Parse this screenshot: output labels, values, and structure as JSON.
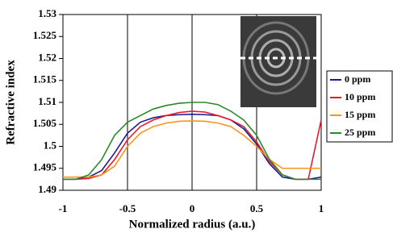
{
  "chart_data": {
    "type": "line",
    "x_label": "Normalized radius (a.u.)",
    "y_label": "Refractive index",
    "x": [
      -1,
      -0.9,
      -0.8,
      -0.7,
      -0.6,
      -0.5,
      -0.4,
      -0.3,
      -0.2,
      -0.1,
      0,
      0.1,
      0.2,
      0.3,
      0.4,
      0.5,
      0.6,
      0.7,
      0.8,
      0.9,
      1
    ],
    "series": [
      {
        "name": "0 ppm",
        "color": "#1c1c8c",
        "values": [
          1.4925,
          1.4925,
          1.493,
          1.4945,
          1.4985,
          1.503,
          1.5055,
          1.5065,
          1.507,
          1.5072,
          1.5073,
          1.5072,
          1.507,
          1.506,
          1.504,
          1.5005,
          1.496,
          1.493,
          1.4925,
          1.4925,
          1.493
        ]
      },
      {
        "name": "10 ppm",
        "color": "#e8192c",
        "values": [
          1.4925,
          1.4925,
          1.4927,
          1.4935,
          1.497,
          1.5015,
          1.5045,
          1.506,
          1.507,
          1.5077,
          1.508,
          1.5078,
          1.507,
          1.506,
          1.5045,
          1.501,
          1.4965,
          1.4935,
          1.4925,
          1.4925,
          1.506
        ]
      },
      {
        "name": "15 ppm",
        "color": "#f7941d",
        "values": [
          1.493,
          1.493,
          1.493,
          1.4935,
          1.4955,
          1.5,
          1.503,
          1.5045,
          1.5053,
          1.5057,
          1.5058,
          1.5057,
          1.5053,
          1.5045,
          1.5025,
          1.5,
          1.497,
          1.495,
          1.495,
          1.495,
          1.495
        ]
      },
      {
        "name": "25 ppm",
        "color": "#2a8a2a",
        "values": [
          1.4925,
          1.4925,
          1.4935,
          1.497,
          1.5025,
          1.5055,
          1.507,
          1.5085,
          1.5093,
          1.5098,
          1.51,
          1.51,
          1.5095,
          1.508,
          1.506,
          1.5025,
          1.497,
          1.4935,
          1.4925,
          1.4925,
          1.4925
        ]
      }
    ],
    "xlim": [
      -1,
      1
    ],
    "xticks": [
      -1,
      -0.5,
      0,
      0.5,
      1
    ],
    "ylim": [
      1.49,
      1.53
    ],
    "yticks": [
      1.49,
      1.495,
      1.5,
      1.505,
      1.51,
      1.515,
      1.52,
      1.525,
      1.53
    ],
    "grid": "x",
    "legend": "right"
  }
}
